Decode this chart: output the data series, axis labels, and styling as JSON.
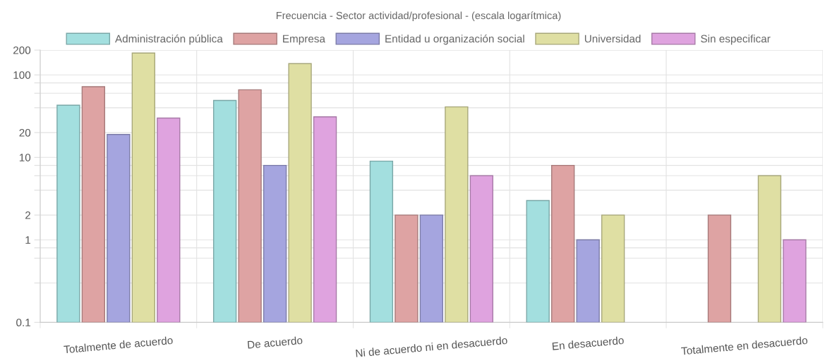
{
  "chart_data": {
    "type": "bar",
    "title": "Frecuencia - Sector actividad/profesional - (escala logarítmica)",
    "categories": [
      "Totalmente de acuerdo",
      "De acuerdo",
      "Ni de acuerdo ni en desacuerdo",
      "En desacuerdo",
      "Totalmente en desacuerdo"
    ],
    "series": [
      {
        "name": "Administración pública",
        "color": "#a3dfdf",
        "values": [
          43,
          49,
          9,
          3,
          null
        ]
      },
      {
        "name": "Empresa",
        "color": "#dea3a3",
        "values": [
          72,
          66,
          2,
          8,
          2
        ]
      },
      {
        "name": "Entidad u organización social",
        "color": "#a5a5df",
        "values": [
          19,
          8,
          2,
          1,
          null
        ]
      },
      {
        "name": "Universidad",
        "color": "#dfdfa3",
        "values": [
          184,
          137,
          41,
          2,
          6
        ]
      },
      {
        "name": "Sin especificar",
        "color": "#dfa3df",
        "values": [
          30,
          31,
          6,
          null,
          1
        ]
      }
    ],
    "log": "y",
    "ylim": [
      0.1,
      200
    ],
    "yticks": [
      0.1,
      {
        "value": 0.3,
        "label": null
      },
      {
        "value": 0.6,
        "label": null
      },
      {
        "value": 0.8,
        "label": null
      },
      1,
      2,
      {
        "value": 4,
        "label": null
      },
      {
        "value": 6,
        "label": null
      },
      {
        "value": 8,
        "label": null
      },
      10,
      20,
      {
        "value": 40,
        "label": null
      },
      {
        "value": 60,
        "label": null
      },
      {
        "value": 80,
        "label": null
      },
      100,
      200
    ],
    "grid": true,
    "legend": "top"
  }
}
